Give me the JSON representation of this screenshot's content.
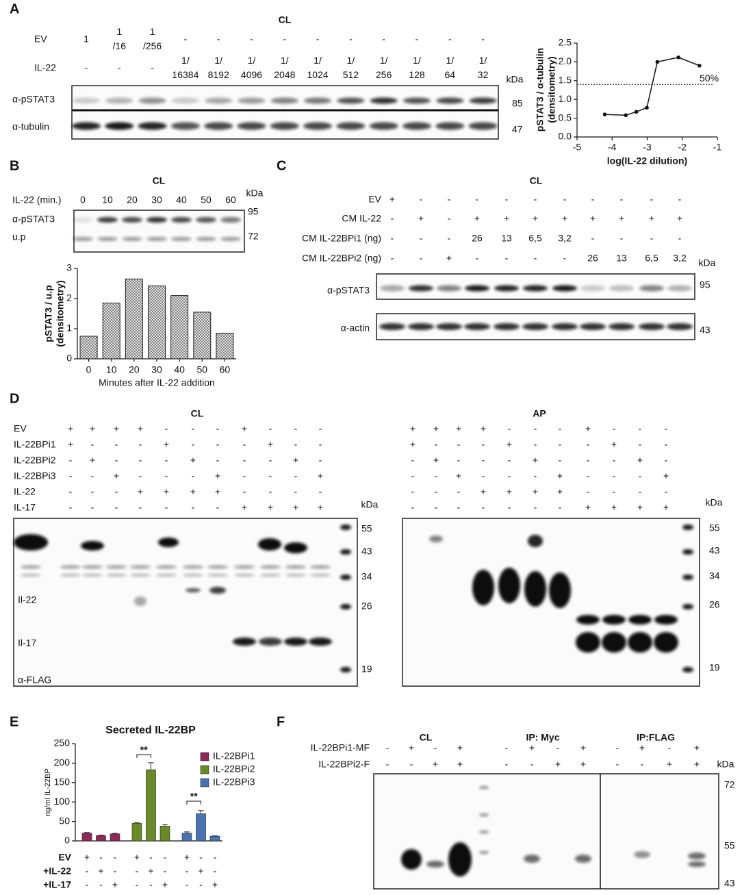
{
  "panel_labels": [
    "A",
    "B",
    "C",
    "D",
    "E",
    "F"
  ],
  "blots": {
    "A": {
      "title": "CL",
      "rows": [
        {
          "label": "EV",
          "lanes": [
            [
              "1"
            ],
            [
              "1",
              "/16"
            ],
            [
              "1",
              "/256"
            ],
            [
              "-"
            ],
            [
              "-"
            ],
            [
              "-"
            ],
            [
              "-"
            ],
            [
              "-"
            ],
            [
              "-"
            ],
            [
              "-"
            ],
            [
              "-"
            ],
            [
              "-"
            ],
            [
              "-"
            ]
          ]
        },
        {
          "label": "IL-22",
          "lanes": [
            [
              "-"
            ],
            [
              "-"
            ],
            [
              "-"
            ],
            [
              "1/",
              "16384"
            ],
            [
              "1/",
              "8192"
            ],
            [
              "1/",
              "4096"
            ],
            [
              "1/",
              "2048"
            ],
            [
              "1/",
              "1024"
            ],
            [
              "1/",
              "512"
            ],
            [
              "1/",
              "256"
            ],
            [
              "1/",
              "128"
            ],
            [
              "1/",
              "64"
            ],
            [
              "1/",
              "32"
            ]
          ]
        }
      ],
      "unit": "kDa",
      "markers": [
        85,
        47
      ],
      "probes": [
        "α-pSTAT3",
        "α-tubulin"
      ]
    },
    "B": {
      "title": "CL",
      "rows": [
        {
          "label": "IL-22 (min.)",
          "lanes": [
            "0",
            "10",
            "20",
            "30",
            "40",
            "50",
            "60"
          ]
        }
      ],
      "unit": "kDa",
      "markers": [
        95,
        72
      ],
      "probes": [
        "α-pSTAT3",
        "u.p"
      ]
    },
    "C": {
      "title": "CL",
      "rows": [
        {
          "label": "EV",
          "lanes": [
            "+",
            "-",
            "-",
            "-",
            "-",
            "-",
            "-",
            "-",
            "-",
            "-",
            "-"
          ]
        },
        {
          "label": "CM IL-22",
          "lanes": [
            "-",
            "+",
            "-",
            "+",
            "+",
            "+",
            "+",
            "+",
            "+",
            "+",
            "+"
          ]
        },
        {
          "label": "CM IL-22BPi1 (ng)",
          "lanes": [
            "-",
            "-",
            "-",
            "26",
            "13",
            "6,5",
            "3,2",
            "-",
            "-",
            "-",
            "-"
          ]
        },
        {
          "label": "CM IL-22BPi2 (ng)",
          "lanes": [
            "-",
            "-",
            "+",
            "-",
            "-",
            "-",
            "-",
            "26",
            "13",
            "6,5",
            "3,2"
          ]
        }
      ],
      "unit": "kDa",
      "markers": [
        95,
        43
      ],
      "probes": [
        "α-pSTAT3",
        "α-actin"
      ]
    },
    "D_CL": {
      "title": "CL",
      "rows": [
        {
          "label": "EV",
          "lanes": [
            "+",
            "+",
            "+",
            "+",
            "-",
            "-",
            "-",
            "+",
            "-",
            "-",
            "-"
          ]
        },
        {
          "label": "IL-22BPi1",
          "lanes": [
            "+",
            "-",
            "-",
            "-",
            "+",
            "-",
            "-",
            "-",
            "+",
            "-",
            "-"
          ]
        },
        {
          "label": "IL-22BPi2",
          "lanes": [
            "-",
            "+",
            "-",
            "-",
            "-",
            "+",
            "-",
            "-",
            "-",
            "+",
            "-"
          ]
        },
        {
          "label": "IL-22BPi3",
          "lanes": [
            "-",
            "-",
            "+",
            "-",
            "-",
            "-",
            "+",
            "-",
            "-",
            "-",
            "+"
          ]
        },
        {
          "label": "IL-22",
          "lanes": [
            "-",
            "-",
            "-",
            "+",
            "+",
            "+",
            "+",
            "-",
            "-",
            "-",
            "-"
          ]
        },
        {
          "label": "IL-17",
          "lanes": [
            "-",
            "-",
            "-",
            "-",
            "-",
            "-",
            "-",
            "+",
            "+",
            "+",
            "+"
          ]
        }
      ],
      "unit": "kDa",
      "markers": [
        55,
        43,
        34,
        26,
        19
      ],
      "probes": [
        "Il-22",
        "Il-17",
        "α-FLAG"
      ]
    },
    "D_AP": {
      "title": "AP",
      "rows": [
        {
          "lanes": [
            "+",
            "+",
            "+",
            "+",
            "-",
            "-",
            "-",
            "+",
            "-",
            "-",
            "-"
          ]
        },
        {
          "lanes": [
            "+",
            "-",
            "-",
            "-",
            "+",
            "-",
            "-",
            "-",
            "+",
            "-",
            "-"
          ]
        },
        {
          "lanes": [
            "-",
            "+",
            "-",
            "-",
            "-",
            "+",
            "-",
            "-",
            "-",
            "+",
            "-"
          ]
        },
        {
          "lanes": [
            "-",
            "-",
            "+",
            "-",
            "-",
            "-",
            "+",
            "-",
            "-",
            "-",
            "+"
          ]
        },
        {
          "lanes": [
            "-",
            "-",
            "-",
            "+",
            "+",
            "+",
            "+",
            "-",
            "-",
            "-",
            "-"
          ]
        },
        {
          "lanes": [
            "-",
            "-",
            "-",
            "-",
            "-",
            "-",
            "-",
            "+",
            "+",
            "+",
            "+"
          ]
        }
      ],
      "unit": "kDa",
      "markers": [
        55,
        43,
        34,
        26,
        19
      ]
    },
    "F": {
      "sections": [
        "CL",
        "IP: Myc",
        "IP:FLAG"
      ],
      "rows": [
        {
          "label": "IL-22BPi1-MF",
          "lanes": [
            "-",
            "+",
            "-",
            "+",
            "-",
            "+",
            "-",
            "+",
            "-",
            "+",
            "-",
            "+"
          ]
        },
        {
          "label": "IL-22BPi2-F",
          "lanes": [
            "-",
            "-",
            "+",
            "+",
            "-",
            "-",
            "+",
            "+",
            "-",
            "-",
            "+",
            "+"
          ]
        }
      ],
      "unit": "kDa",
      "markers": [
        72,
        55,
        43
      ]
    }
  },
  "chart_data": [
    {
      "type": "line",
      "ylabel": [
        "pSTAT3 / α-tubulin",
        "(densitometry)"
      ],
      "xlabel": "log(IL-22 dilution)",
      "x": [
        -4.21,
        -3.61,
        -3.31,
        -3.01,
        -2.71,
        -2.11,
        -1.51
      ],
      "values": [
        0.6,
        0.58,
        0.67,
        0.78,
        2.0,
        2.12,
        1.9
      ],
      "color": "#111111",
      "xlim": [
        -5,
        -1
      ],
      "xticks": [
        -5,
        -4,
        -3,
        -2,
        -1
      ],
      "ylim": [
        0,
        2.5
      ],
      "yticks": [
        {
          "value": 0,
          "label": "0.0"
        },
        {
          "value": 0.5,
          "label": "0.5"
        },
        {
          "value": 1,
          "label": "1.0"
        },
        {
          "value": 1.5,
          "label": "1.5"
        },
        {
          "value": 2,
          "label": "2.0"
        },
        {
          "value": 2.5,
          "label": "2.5"
        }
      ],
      "reference": {
        "value": 1.4,
        "label": "50%"
      }
    },
    {
      "type": "bar",
      "ylabel": [
        "pSTAT3 / u.p",
        "(densitometry)"
      ],
      "xlabel": "Minutes after IL-22 addition",
      "categories": [
        "0",
        "10",
        "20",
        "30",
        "40",
        "50",
        "60"
      ],
      "values": [
        0.75,
        1.85,
        2.65,
        2.42,
        2.1,
        1.55,
        0.85
      ],
      "color": "#9a9a9a",
      "ylim": [
        0,
        3
      ],
      "yticks": [
        0,
        1,
        2,
        3
      ]
    },
    {
      "type": "grouped-bar",
      "title": "Secreted IL-22BP",
      "ylabel": "ng/ml IL-22BP",
      "series": [
        {
          "name": "IL-22BPi1",
          "color": "#8e2a5a",
          "values": [
            20,
            14,
            18
          ],
          "errors": [
            1.5,
            1,
            1.5
          ]
        },
        {
          "name": "IL-22BPi2",
          "color": "#6a8a2a",
          "values": [
            45,
            183,
            38
          ],
          "errors": [
            2,
            18,
            4
          ]
        },
        {
          "name": "IL-22BPi3",
          "color": "#4a74b0",
          "values": [
            20,
            70,
            12
          ],
          "errors": [
            3,
            8,
            1
          ]
        }
      ],
      "conditions": {
        "labels": [
          "EV",
          "+IL-22",
          "+IL-17"
        ],
        "rows": [
          [
            "+",
            "-",
            "-",
            "+",
            "-",
            "-",
            "+",
            "-",
            "-"
          ],
          [
            "-",
            "+",
            "-",
            "-",
            "+",
            "-",
            "-",
            "+",
            "-"
          ],
          [
            "-",
            "-",
            "+",
            "-",
            "-",
            "+",
            "-",
            "-",
            "+"
          ]
        ]
      },
      "annotations": [
        "**",
        "**"
      ],
      "ylim": [
        0,
        250
      ],
      "yticks": [
        0,
        50,
        100,
        150,
        200,
        250
      ],
      "legend": "upper right"
    }
  ]
}
